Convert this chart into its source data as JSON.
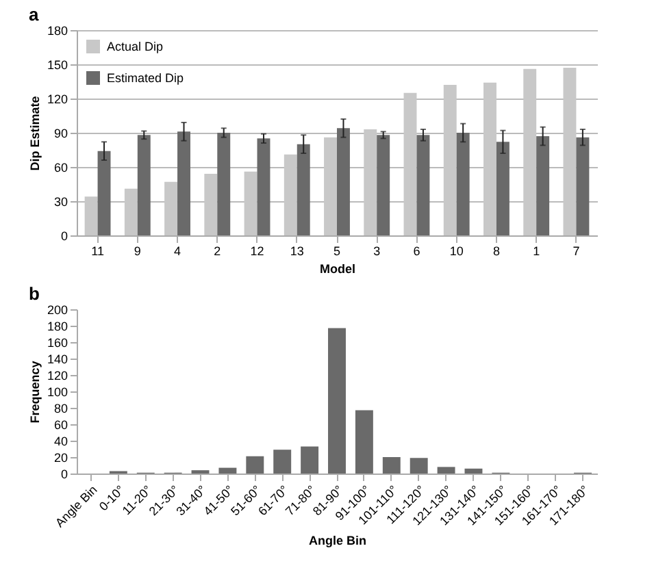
{
  "chart_data": [
    {
      "type": "bar",
      "title": "a",
      "xlabel": "Model",
      "ylabel": "Dip Estimate",
      "categories": [
        "11",
        "9",
        "4",
        "2",
        "12",
        "13",
        "5",
        "3",
        "6",
        "10",
        "8",
        "1",
        "7"
      ],
      "series": [
        {
          "name": "Actual Dip",
          "color": "#c8c8c8",
          "values": [
            34,
            41,
            47,
            54,
            56,
            71,
            86,
            93,
            125,
            132,
            134,
            146,
            147
          ]
        },
        {
          "name": "Estimated Dip",
          "color": "#6a6a6a",
          "values": [
            74,
            88,
            91,
            90,
            85,
            80,
            94,
            88,
            88,
            90,
            82,
            87,
            86
          ],
          "errors": [
            8,
            3.5,
            8,
            4,
            4,
            8,
            8,
            3,
            5,
            8,
            10,
            8,
            7
          ]
        }
      ],
      "ylim": [
        0,
        180
      ],
      "yticks": [
        0,
        30,
        60,
        90,
        120,
        150,
        180
      ],
      "grid": "y",
      "legend": "top left"
    },
    {
      "type": "bar",
      "title": "b",
      "xlabel": "Angle Bin",
      "ylabel": "Frequency",
      "categories": [
        "Angle Bin",
        "0-10°",
        "11-20°",
        "21-30°",
        "31-40°",
        "41-50°",
        "51-60°",
        "61-70°",
        "71-80°",
        "81-90°",
        "91-100°",
        "101-110°",
        "111-120°",
        "121-130°",
        "131-140°",
        "141-150°",
        "151-160°",
        "161-170°",
        "171-180°"
      ],
      "series": [
        {
          "color": "#6a6a6a",
          "values": [
            null,
            3,
            1,
            1,
            4,
            7,
            21,
            29,
            33,
            177,
            77,
            20,
            19,
            8,
            6,
            1,
            0,
            0,
            1
          ]
        }
      ],
      "ylim": [
        0,
        200
      ],
      "yticks": [
        0,
        20,
        40,
        60,
        80,
        100,
        120,
        140,
        160,
        180,
        200
      ],
      "grid": false,
      "legend": false
    }
  ]
}
